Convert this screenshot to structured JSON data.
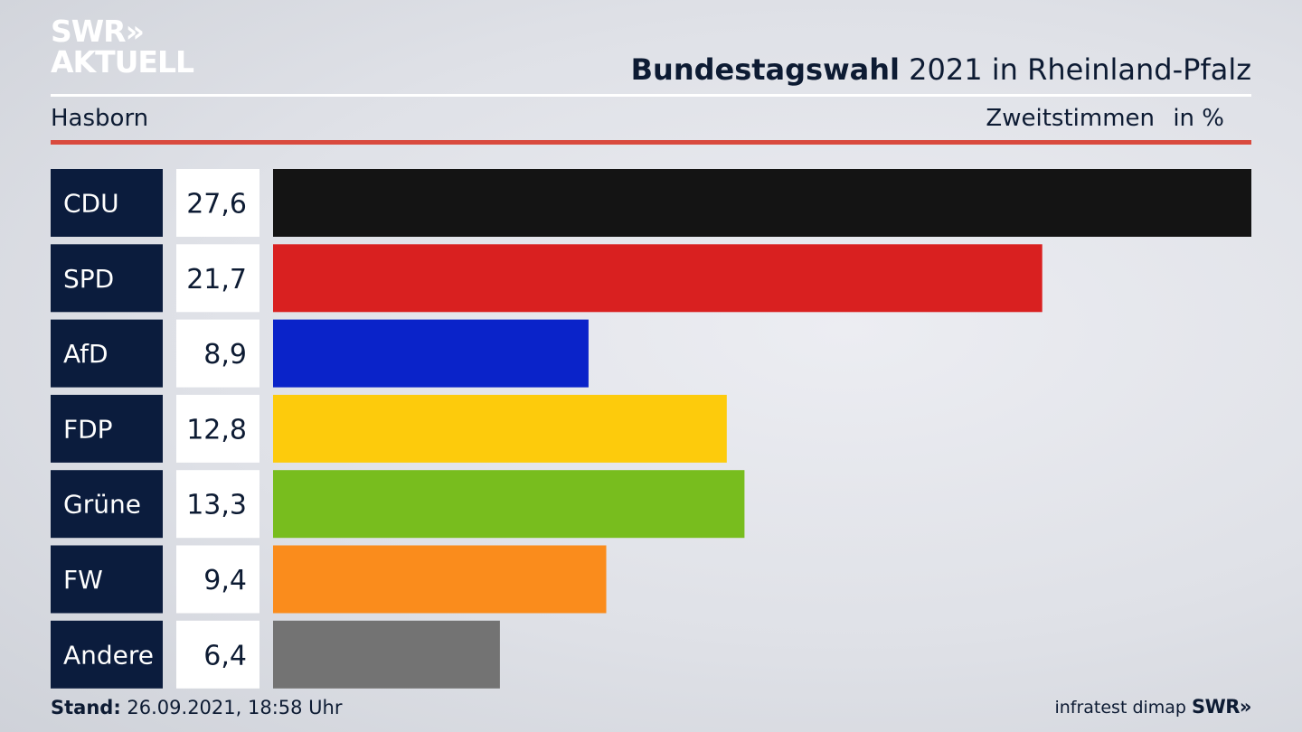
{
  "brand": {
    "logo_line1": "SWR",
    "logo_chevrons": "»",
    "logo_line2": "AKTUELL",
    "footer_logo": "SWR»"
  },
  "header": {
    "title_bold": "Bundestagswahl",
    "title_rest": " 2021 in Rheinland-Pfalz",
    "region": "Hasborn",
    "vote_type": "Zweitstimmen",
    "unit": "in %"
  },
  "footer": {
    "stand_label": "Stand:",
    "stand_value": " 26.09.2021, 18:58 Uhr",
    "source": "infratest dimap"
  },
  "colors": {
    "label_bg": "#0b1c3d",
    "value_bg": "#ffffff",
    "accent_rule": "#d94a3e"
  },
  "chart_data": {
    "type": "bar",
    "orientation": "horizontal",
    "categories": [
      "CDU",
      "SPD",
      "AfD",
      "FDP",
      "Grüne",
      "FW",
      "Andere"
    ],
    "values": [
      27.6,
      21.7,
      8.9,
      12.8,
      13.3,
      9.4,
      6.4
    ],
    "value_labels": [
      "27,6",
      "21,7",
      "8,9",
      "12,8",
      "13,3",
      "9,4",
      "6,4"
    ],
    "colors": [
      "#141414",
      "#d92020",
      "#0a23c9",
      "#fdcb0c",
      "#78bd1e",
      "#fa8c1c",
      "#737373"
    ],
    "xlim": [
      0,
      27.6
    ]
  }
}
